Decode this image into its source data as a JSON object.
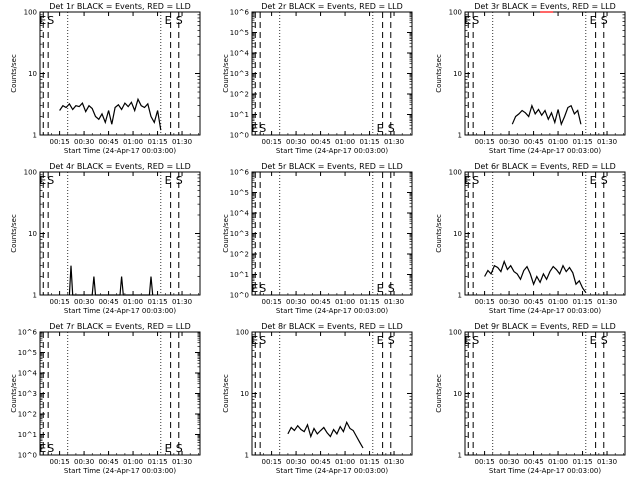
{
  "start_time_label": "Start Time (24-Apr-17 00:03:00)",
  "x_ticks": [
    "00:15",
    "00:30",
    "00:45",
    "01:00",
    "01:15",
    "01:30"
  ],
  "x_tick_minutes": [
    15,
    30,
    45,
    60,
    75,
    90
  ],
  "x_range_minutes": [
    3,
    101
  ],
  "markers": {
    "E": "E",
    "S": "S"
  },
  "colors": {
    "events": "#000000",
    "lld": "#ff0000"
  },
  "chart_data": [
    {
      "type": "line",
      "title": "Det 1r BLACK = Events, RED = LLD",
      "ylabel": "Counts/sec",
      "yscale": "log",
      "ylim": [
        1,
        100
      ],
      "y_ticks": [
        "1",
        "10",
        "100"
      ],
      "y_tick_values": [
        1,
        10,
        100
      ],
      "marker_pos": "top",
      "series": [
        {
          "x": [
            15,
            17,
            19,
            21,
            23,
            25,
            27,
            29,
            31,
            33,
            35,
            37,
            39,
            41,
            43,
            45,
            47,
            49,
            51,
            53,
            55,
            57,
            59,
            61,
            63,
            65,
            67,
            69,
            71,
            73,
            75,
            77
          ],
          "y": [
            2.5,
            3,
            2.8,
            3.2,
            2.6,
            3,
            2.9,
            3.3,
            2.4,
            3,
            2.7,
            2,
            1.8,
            2.2,
            1.6,
            2.5,
            1.5,
            2.8,
            3.1,
            2.6,
            3.3,
            2.9,
            3.4,
            2.5,
            3.8,
            3,
            2.8,
            3.2,
            2,
            1.6,
            2.5,
            1.2
          ]
        }
      ]
    },
    {
      "type": "line",
      "title": "Det 2r BLACK = Events, RED = LLD",
      "ylabel": "Counts/sec",
      "yscale": "log",
      "ylim": [
        1,
        1000000
      ],
      "y_ticks": [
        "10^0",
        "10^1",
        "10^2",
        "10^3",
        "10^4",
        "10^5",
        "10^6"
      ],
      "y_tick_values": [
        1,
        10,
        100,
        1000,
        10000,
        100000,
        1000000
      ],
      "marker_pos": "bottom",
      "series": []
    },
    {
      "type": "line",
      "title": "Det 3r BLACK = Events, RED = LLD",
      "ylabel": "Counts/sec",
      "yscale": "log",
      "ylim": [
        1,
        100
      ],
      "y_ticks": [
        "1",
        "10",
        "100"
      ],
      "y_tick_values": [
        1,
        10,
        100
      ],
      "marker_pos": "top",
      "series": [
        {
          "x": [
            32,
            34,
            36,
            38,
            40,
            42,
            44,
            46,
            48,
            50,
            52,
            54,
            56,
            58,
            60,
            62,
            64,
            66,
            68,
            70,
            72,
            74
          ],
          "y": [
            1.5,
            2,
            2.2,
            2.5,
            2.3,
            2,
            3,
            2.2,
            2.6,
            2.1,
            2.5,
            1.8,
            2.3,
            1.6,
            2.6,
            1.5,
            2,
            2.8,
            3,
            2.2,
            2.5,
            1.5
          ]
        },
        {
          "name": "",
          "x": [
            49,
            51,
            53,
            55,
            57
          ],
          "y": [
            100,
            100,
            100,
            100,
            100
          ]
        }
      ]
    },
    {
      "type": "line",
      "title": "Det 4r BLACK = Events, RED = LLD",
      "ylabel": "Counts/sec",
      "yscale": "log",
      "ylim": [
        1,
        100
      ],
      "y_ticks": [
        "1",
        "10",
        "100"
      ],
      "y_tick_values": [
        1,
        10,
        100
      ],
      "marker_pos": "top",
      "series": [
        {
          "x": [
            21,
            22,
            23,
            35,
            36,
            37,
            52,
            53,
            54,
            70,
            71,
            72
          ],
          "y": [
            1,
            3,
            1,
            1,
            2,
            1,
            1,
            2,
            1,
            1,
            2,
            1
          ]
        }
      ]
    },
    {
      "type": "line",
      "title": "Det 5r BLACK = Events, RED = LLD",
      "ylabel": "Counts/sec",
      "yscale": "log",
      "ylim": [
        1,
        1000000
      ],
      "y_ticks": [
        "10^0",
        "10^1",
        "10^2",
        "10^3",
        "10^4",
        "10^5",
        "10^6"
      ],
      "y_tick_values": [
        1,
        10,
        100,
        1000,
        10000,
        100000,
        1000000
      ],
      "marker_pos": "bottom",
      "series": []
    },
    {
      "type": "line",
      "title": "Det 6r BLACK = Events, RED = LLD",
      "ylabel": "Counts/sec",
      "yscale": "log",
      "ylim": [
        1,
        100
      ],
      "y_ticks": [
        "1",
        "10",
        "100"
      ],
      "y_tick_values": [
        1,
        10,
        100
      ],
      "marker_pos": "top",
      "series": [
        {
          "x": [
            15,
            17,
            19,
            21,
            23,
            25,
            27,
            29,
            31,
            33,
            35,
            37,
            39,
            41,
            43,
            45,
            47,
            49,
            51,
            53,
            55,
            57,
            59,
            61,
            63,
            65,
            67,
            69,
            71,
            73,
            75,
            77
          ],
          "y": [
            2,
            2.5,
            2.2,
            3,
            2.8,
            2.4,
            3.5,
            2.6,
            3,
            2.4,
            2.2,
            1.8,
            2.5,
            2.9,
            2.2,
            1.5,
            2,
            1.6,
            2.2,
            1.8,
            2.4,
            2.9,
            2.6,
            2.2,
            3,
            2.4,
            2.8,
            2.3,
            1.5,
            1.7,
            1.3,
            1.1
          ]
        }
      ]
    },
    {
      "type": "line",
      "title": "Det 7r BLACK = Events, RED = LLD",
      "ylabel": "Counts/sec",
      "yscale": "log",
      "ylim": [
        1,
        1000000
      ],
      "y_ticks": [
        "10^0",
        "10^1",
        "10^2",
        "10^3",
        "10^4",
        "10^5",
        "10^6"
      ],
      "y_tick_values": [
        1,
        10,
        100,
        1000,
        10000,
        100000,
        1000000
      ],
      "marker_pos": "bottom",
      "series": []
    },
    {
      "type": "line",
      "title": "Det 8r BLACK = Events, RED = LLD",
      "ylabel": "Counts/sec",
      "yscale": "log",
      "ylim": [
        1,
        100
      ],
      "y_ticks": [
        "1",
        "10",
        "100"
      ],
      "y_tick_values": [
        1,
        10,
        100
      ],
      "marker_pos": "top",
      "series": [
        {
          "x": [
            25,
            27,
            29,
            31,
            33,
            35,
            37,
            39,
            41,
            43,
            45,
            47,
            49,
            51,
            53,
            55,
            57,
            59,
            61,
            63,
            65,
            67,
            69,
            71
          ],
          "y": [
            2.2,
            2.8,
            2.5,
            3,
            2.6,
            2.4,
            3.1,
            2,
            2.7,
            2.2,
            2.5,
            2.8,
            2.3,
            2,
            2.6,
            2.2,
            2.9,
            2.4,
            3.4,
            2.7,
            2.5,
            2,
            1.6,
            1.3
          ]
        }
      ]
    },
    {
      "type": "line",
      "title": "Det 9r BLACK = Events, RED = LLD",
      "ylabel": "Counts/sec",
      "yscale": "log",
      "ylim": [
        1,
        100
      ],
      "y_ticks": [
        "1",
        "10",
        "100"
      ],
      "y_tick_values": [
        1,
        10,
        100
      ],
      "marker_pos": "top",
      "series": []
    }
  ]
}
